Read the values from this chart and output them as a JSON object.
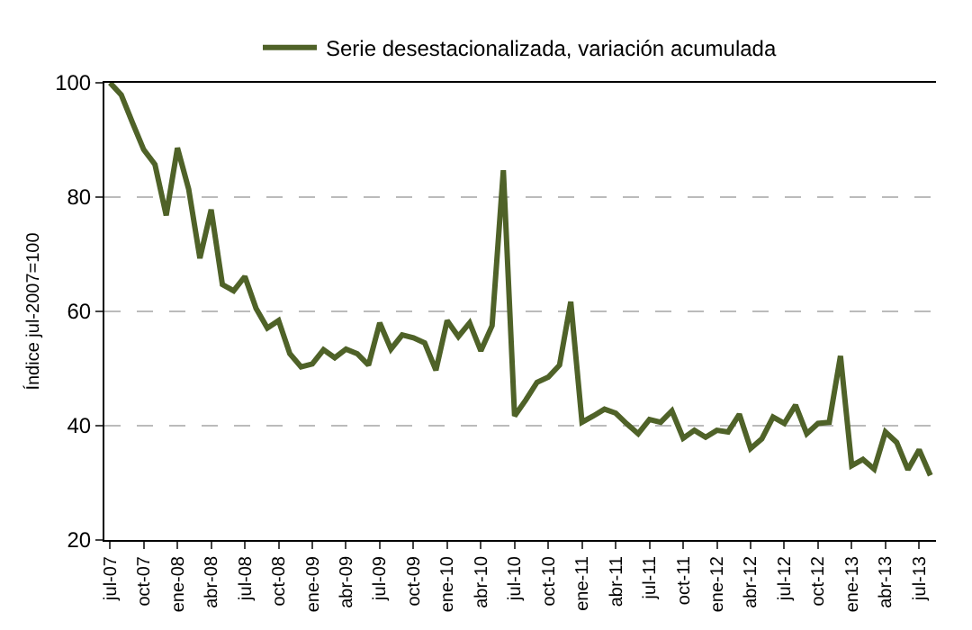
{
  "chart_data": {
    "type": "line",
    "ylabel": "Índice jul-2007=100",
    "categories": [
      "jul-07",
      null,
      null,
      "oct-07",
      null,
      null,
      "ene-08",
      null,
      null,
      "abr-08",
      null,
      null,
      "jul-08",
      null,
      null,
      "oct-08",
      null,
      null,
      "ene-09",
      null,
      null,
      "abr-09",
      null,
      null,
      "jul-09",
      null,
      null,
      "oct-09",
      null,
      null,
      "ene-10",
      null,
      null,
      "abr-10",
      null,
      null,
      "jul-10",
      null,
      null,
      "oct-10",
      null,
      null,
      "ene-11",
      null,
      null,
      "abr-11",
      null,
      null,
      "jul-11",
      null,
      null,
      "oct-11",
      null,
      null,
      "ene-12",
      null,
      null,
      "abr-12",
      null,
      null,
      "jul-12",
      null,
      null,
      "oct-12",
      null,
      null,
      "ene-13",
      null,
      null,
      "abr-13",
      null,
      null,
      "jul-13",
      null
    ],
    "series": [
      {
        "name": "Serie desestacionalizada, variación acumulada",
        "color": "#4f6228",
        "values": [
          100,
          97.9,
          93,
          88.3,
          85.7,
          76.8,
          88.6,
          81.4,
          69.3,
          77.8,
          64.7,
          63.6,
          66.1,
          60.5,
          57.1,
          58.4,
          52.6,
          50.3,
          50.8,
          53.3,
          51.9,
          53.4,
          52.6,
          50.6,
          58.0,
          53.4,
          55.9,
          55.4,
          54.5,
          49.7,
          58.4,
          55.6,
          58.0,
          53.1,
          57.5,
          84.7,
          41.7,
          44.5,
          47.6,
          48.5,
          50.6,
          61.7,
          40.6,
          41.7,
          42.9,
          42.2,
          40.3,
          38.6,
          41.1,
          40.6,
          42.6,
          37.8,
          39.2,
          38.0,
          39.2,
          38.9,
          42.0,
          36.0,
          37.7,
          41.5,
          40.4,
          43.6,
          38.6,
          40.4,
          40.6,
          52.2,
          33.0,
          34.1,
          32.4,
          38.9,
          37.1,
          32.3,
          35.8,
          31.3
        ]
      }
    ],
    "ylim": [
      20,
      100
    ],
    "yticks": [
      20,
      40,
      60,
      80,
      100
    ],
    "grid": "y",
    "legend": "top",
    "marker": "none",
    "line_style": "solid"
  }
}
